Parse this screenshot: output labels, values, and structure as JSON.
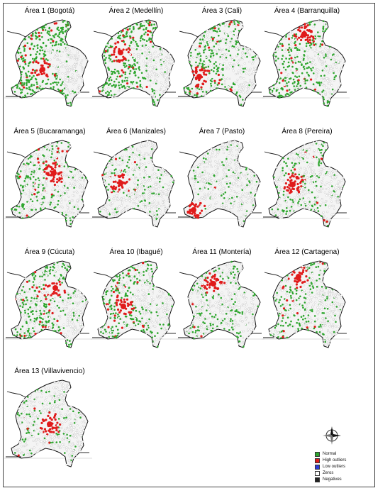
{
  "panels": [
    {
      "label": "Área 1 (Bogotá)",
      "hotspot": "center"
    },
    {
      "label": "Área 2 (Medellín)",
      "hotspot": "northwest"
    },
    {
      "label": "Área 3 (Cali)",
      "hotspot": "southwest"
    },
    {
      "label": "Área 4 (Barranquilla)",
      "hotspot": "north coast"
    },
    {
      "label": "Área 5 (Bucaramanga)",
      "hotspot": "northeast-center"
    },
    {
      "label": "Área 6 (Manizales)",
      "hotspot": "west-center"
    },
    {
      "label": "Área 7 (Pasto)",
      "hotspot": "southwest"
    },
    {
      "label": "Área 8 (Pereira)",
      "hotspot": "west-center"
    },
    {
      "label": "Área 9 (Cúcuta)",
      "hotspot": "northeast"
    },
    {
      "label": "Área 10 (Ibagué)",
      "hotspot": "center"
    },
    {
      "label": "Área 11 (Montería)",
      "hotspot": "north"
    },
    {
      "label": "Área 12 (Cartagena)",
      "hotspot": "north coast"
    },
    {
      "label": "Área 13 (Villavivencio)",
      "hotspot": "center-east"
    }
  ],
  "legend": {
    "compass_icon": "north-arrow-compass-icon",
    "items": [
      {
        "label": "Normal",
        "color": "#2ea62e"
      },
      {
        "label": "High outliers",
        "color": "#e01b1b"
      },
      {
        "label": "Low outliers",
        "color": "#2b3bd6"
      },
      {
        "label": "Zeros",
        "color": "#ffffff"
      },
      {
        "label": "Negatives",
        "color": "#222222"
      }
    ]
  }
}
